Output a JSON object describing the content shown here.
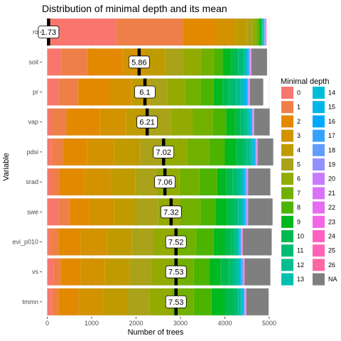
{
  "chart_data": {
    "type": "bar",
    "orientation": "horizontal",
    "stacked": true,
    "title": "Distribution of minimal depth and its mean",
    "xlabel": "Number of trees",
    "ylabel": "Variable",
    "xlim": [
      -120,
      5000
    ],
    "x_ticks": [
      0,
      1000,
      2000,
      3000,
      4000,
      5000
    ],
    "grid": true,
    "legend": {
      "title": "Minimal depth",
      "placement": "right",
      "columns": 2,
      "entries": [
        "0",
        "1",
        "2",
        "3",
        "4",
        "5",
        "6",
        "7",
        "8",
        "9",
        "10",
        "11",
        "12",
        "13",
        "14",
        "15",
        "16",
        "17",
        "18",
        "19",
        "20",
        "21",
        "22",
        "23",
        "24",
        "25",
        "26",
        "NA"
      ],
      "colors": [
        "#F8766D",
        "#EF7F49",
        "#E38900",
        "#D39200",
        "#C09B00",
        "#AAA219",
        "#93AA00",
        "#72B000",
        "#4CB400",
        "#00B81F",
        "#00BA50",
        "#00BC72",
        "#00BE90",
        "#00C0AF",
        "#00BCD8",
        "#00B5E7",
        "#00A9FF",
        "#35A2FF",
        "#619CFF",
        "#9590FF",
        "#C77CFF",
        "#DB72FB",
        "#E76BF3",
        "#F365E4",
        "#FF61C3",
        "#FF63B6",
        "#FF67A4",
        "#7F7F7F"
      ]
    },
    "categories": [
      "ro",
      "soil",
      "pr",
      "vap",
      "pdsi",
      "srad",
      "swe",
      "evi_p010",
      "vs",
      "tmmn"
    ],
    "means": [
      1.73,
      5.86,
      6.1,
      6.21,
      7.02,
      7.06,
      7.32,
      7.52,
      7.53,
      7.53
    ],
    "mean_labels": [
      "1.73",
      "5.86",
      "6.1",
      "6.21",
      "7.02",
      "7.06",
      "7.32",
      "7.52",
      "7.53",
      "7.53"
    ],
    "mean_x": [
      30,
      2070,
      2200,
      2250,
      2620,
      2650,
      2790,
      2900,
      2900,
      2900
    ],
    "counts": [
      [
        1550,
        1500,
        750,
        450,
        250,
        120,
        80,
        50,
        35,
        25,
        20,
        15,
        10,
        10,
        10,
        8,
        7,
        5,
        5,
        5,
        5,
        5,
        5,
        5,
        5,
        5,
        5,
        0
      ],
      [
        300,
        600,
        800,
        500,
        450,
        400,
        400,
        300,
        200,
        200,
        150,
        100,
        50,
        30,
        30,
        15,
        10,
        10,
        10,
        10,
        5,
        5,
        5,
        5,
        5,
        5,
        5,
        350
      ],
      [
        250,
        450,
        700,
        500,
        400,
        400,
        400,
        350,
        300,
        200,
        150,
        150,
        100,
        50,
        40,
        30,
        30,
        15,
        10,
        5,
        5,
        5,
        5,
        5,
        5,
        5,
        5,
        300
      ],
      [
        80,
        350,
        750,
        600,
        500,
        500,
        500,
        450,
        300,
        200,
        120,
        100,
        60,
        40,
        30,
        20,
        10,
        5,
        5,
        5,
        5,
        5,
        5,
        5,
        5,
        5,
        5,
        350
      ],
      [
        100,
        250,
        550,
        600,
        600,
        550,
        500,
        500,
        350,
        250,
        150,
        100,
        80,
        40,
        30,
        20,
        10,
        10,
        10,
        5,
        5,
        5,
        5,
        5,
        5,
        5,
        5,
        350
      ],
      [
        80,
        200,
        550,
        600,
        550,
        500,
        500,
        450,
        400,
        200,
        150,
        100,
        80,
        40,
        30,
        20,
        10,
        10,
        10,
        10,
        5,
        5,
        5,
        5,
        5,
        5,
        5,
        500
      ],
      [
        250,
        250,
        450,
        550,
        500,
        500,
        500,
        450,
        350,
        250,
        150,
        100,
        60,
        40,
        30,
        20,
        10,
        10,
        10,
        10,
        5,
        5,
        5,
        5,
        5,
        5,
        5,
        550
      ],
      [
        50,
        200,
        500,
        600,
        550,
        500,
        500,
        450,
        400,
        250,
        150,
        80,
        50,
        30,
        20,
        10,
        10,
        10,
        5,
        5,
        5,
        5,
        5,
        5,
        5,
        5,
        5,
        650
      ],
      [
        150,
        150,
        450,
        550,
        550,
        500,
        500,
        450,
        350,
        250,
        200,
        100,
        80,
        40,
        30,
        20,
        10,
        10,
        10,
        10,
        5,
        5,
        5,
        5,
        5,
        5,
        5,
        580
      ],
      [
        100,
        150,
        450,
        550,
        550,
        500,
        500,
        500,
        400,
        300,
        200,
        100,
        50,
        30,
        20,
        15,
        10,
        10,
        10,
        5,
        5,
        5,
        5,
        5,
        5,
        5,
        5,
        500
      ]
    ]
  }
}
